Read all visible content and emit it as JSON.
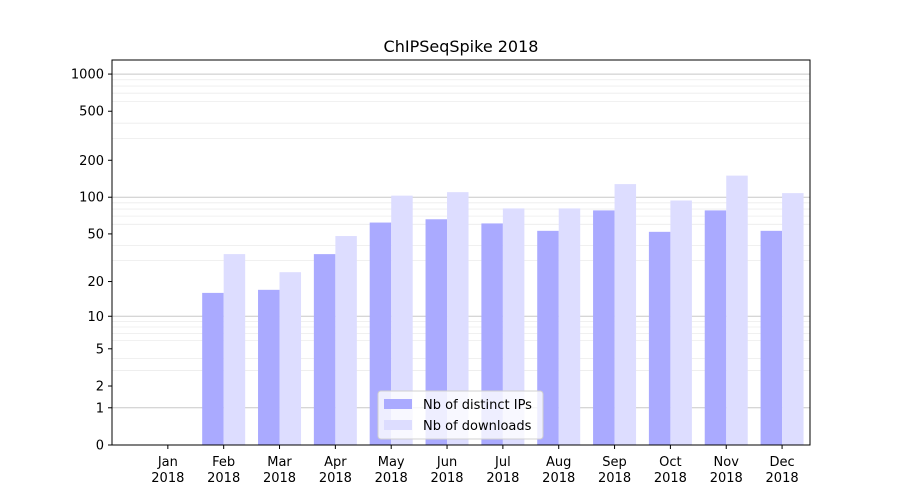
{
  "chart_data": {
    "type": "bar",
    "title": "ChIPSeqSpike 2018",
    "xlabel": "",
    "ylabel": "",
    "yscale": "symlog",
    "ylim": [
      0,
      1300
    ],
    "y_ticks": [
      "0",
      "1",
      "2",
      "5",
      "10",
      "20",
      "50",
      "100",
      "200",
      "500",
      "1000"
    ],
    "y_tick_values": [
      0,
      1,
      2,
      5,
      10,
      20,
      50,
      100,
      200,
      500,
      1000
    ],
    "grid": "horizontal",
    "legend_position": "bottom-center",
    "categories": [
      "Jan 2018",
      "Feb 2018",
      "Mar 2018",
      "Apr 2018",
      "May 2018",
      "Jun 2018",
      "Jul 2018",
      "Aug 2018",
      "Sep 2018",
      "Oct 2018",
      "Nov 2018",
      "Dec 2018"
    ],
    "category_lines": [
      [
        "Jan",
        "2018"
      ],
      [
        "Feb",
        "2018"
      ],
      [
        "Mar",
        "2018"
      ],
      [
        "Apr",
        "2018"
      ],
      [
        "May",
        "2018"
      ],
      [
        "Jun",
        "2018"
      ],
      [
        "Jul",
        "2018"
      ],
      [
        "Aug",
        "2018"
      ],
      [
        "Sep",
        "2018"
      ],
      [
        "Oct",
        "2018"
      ],
      [
        "Nov",
        "2018"
      ],
      [
        "Dec",
        "2018"
      ]
    ],
    "series": [
      {
        "name": "Nb of distinct IPs",
        "color": "#aaaaff",
        "values": [
          0,
          16,
          17,
          34,
          62,
          66,
          61,
          53,
          78,
          52,
          78,
          53
        ]
      },
      {
        "name": "Nb of downloads",
        "color": "#ddddff",
        "values": [
          0,
          34,
          24,
          48,
          103,
          110,
          81,
          81,
          128,
          94,
          150,
          108
        ]
      }
    ]
  }
}
